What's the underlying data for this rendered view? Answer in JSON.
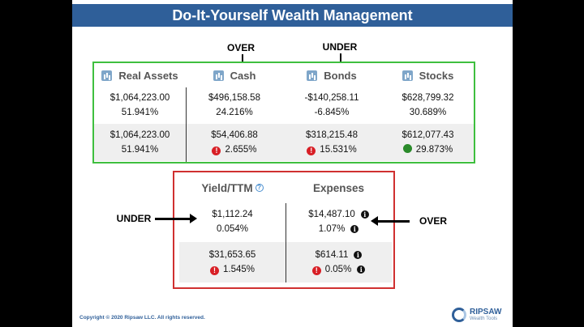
{
  "title": "Do-It-Yourself Wealth Management",
  "annotations": {
    "cash_label": "OVER",
    "bonds_label": "UNDER",
    "yield_label": "UNDER",
    "expenses_label": "OVER"
  },
  "allocation": {
    "headers": [
      "Real Assets",
      "Cash",
      "Bonds",
      "Stocks"
    ],
    "current": [
      {
        "amount": "$1,064,223.00",
        "pct": "51.941%"
      },
      {
        "amount": "$496,158.58",
        "pct": "24.216%"
      },
      {
        "amount": "-$140,258.11",
        "pct": "-6.845%"
      },
      {
        "amount": "$628,799.32",
        "pct": "30.689%"
      }
    ],
    "target": [
      {
        "amount": "$1,064,223.00",
        "pct": "51.941%",
        "status": "none"
      },
      {
        "amount": "$54,406.88",
        "pct": "2.655%",
        "status": "warning"
      },
      {
        "amount": "$318,215.48",
        "pct": "15.531%",
        "status": "warning"
      },
      {
        "amount": "$612,077.43",
        "pct": "29.873%",
        "status": "ok"
      }
    ]
  },
  "income": {
    "yield_header": "Yield/TTM",
    "expenses_header": "Expenses",
    "current": {
      "yield_amount": "$1,112.24",
      "yield_pct": "0.054%",
      "expenses_amount": "$14,487.10",
      "expenses_pct": "1.07%"
    },
    "target": {
      "yield_amount": "$31,653.65",
      "yield_pct": "1.545%",
      "expenses_amount": "$614.11",
      "expenses_pct": "0.05%"
    }
  },
  "footer": {
    "copyright": "Copyright © 2020 Ripsaw LLC. All rights reserved.",
    "logo_name": "RIPSAW",
    "logo_tagline": "Wealth Tools"
  },
  "colors": {
    "title_bar": "#2f5f99",
    "alloc_border": "#3fbf3f",
    "income_border": "#d03030",
    "warning": "#d81f26",
    "ok": "#2a8a2a"
  }
}
